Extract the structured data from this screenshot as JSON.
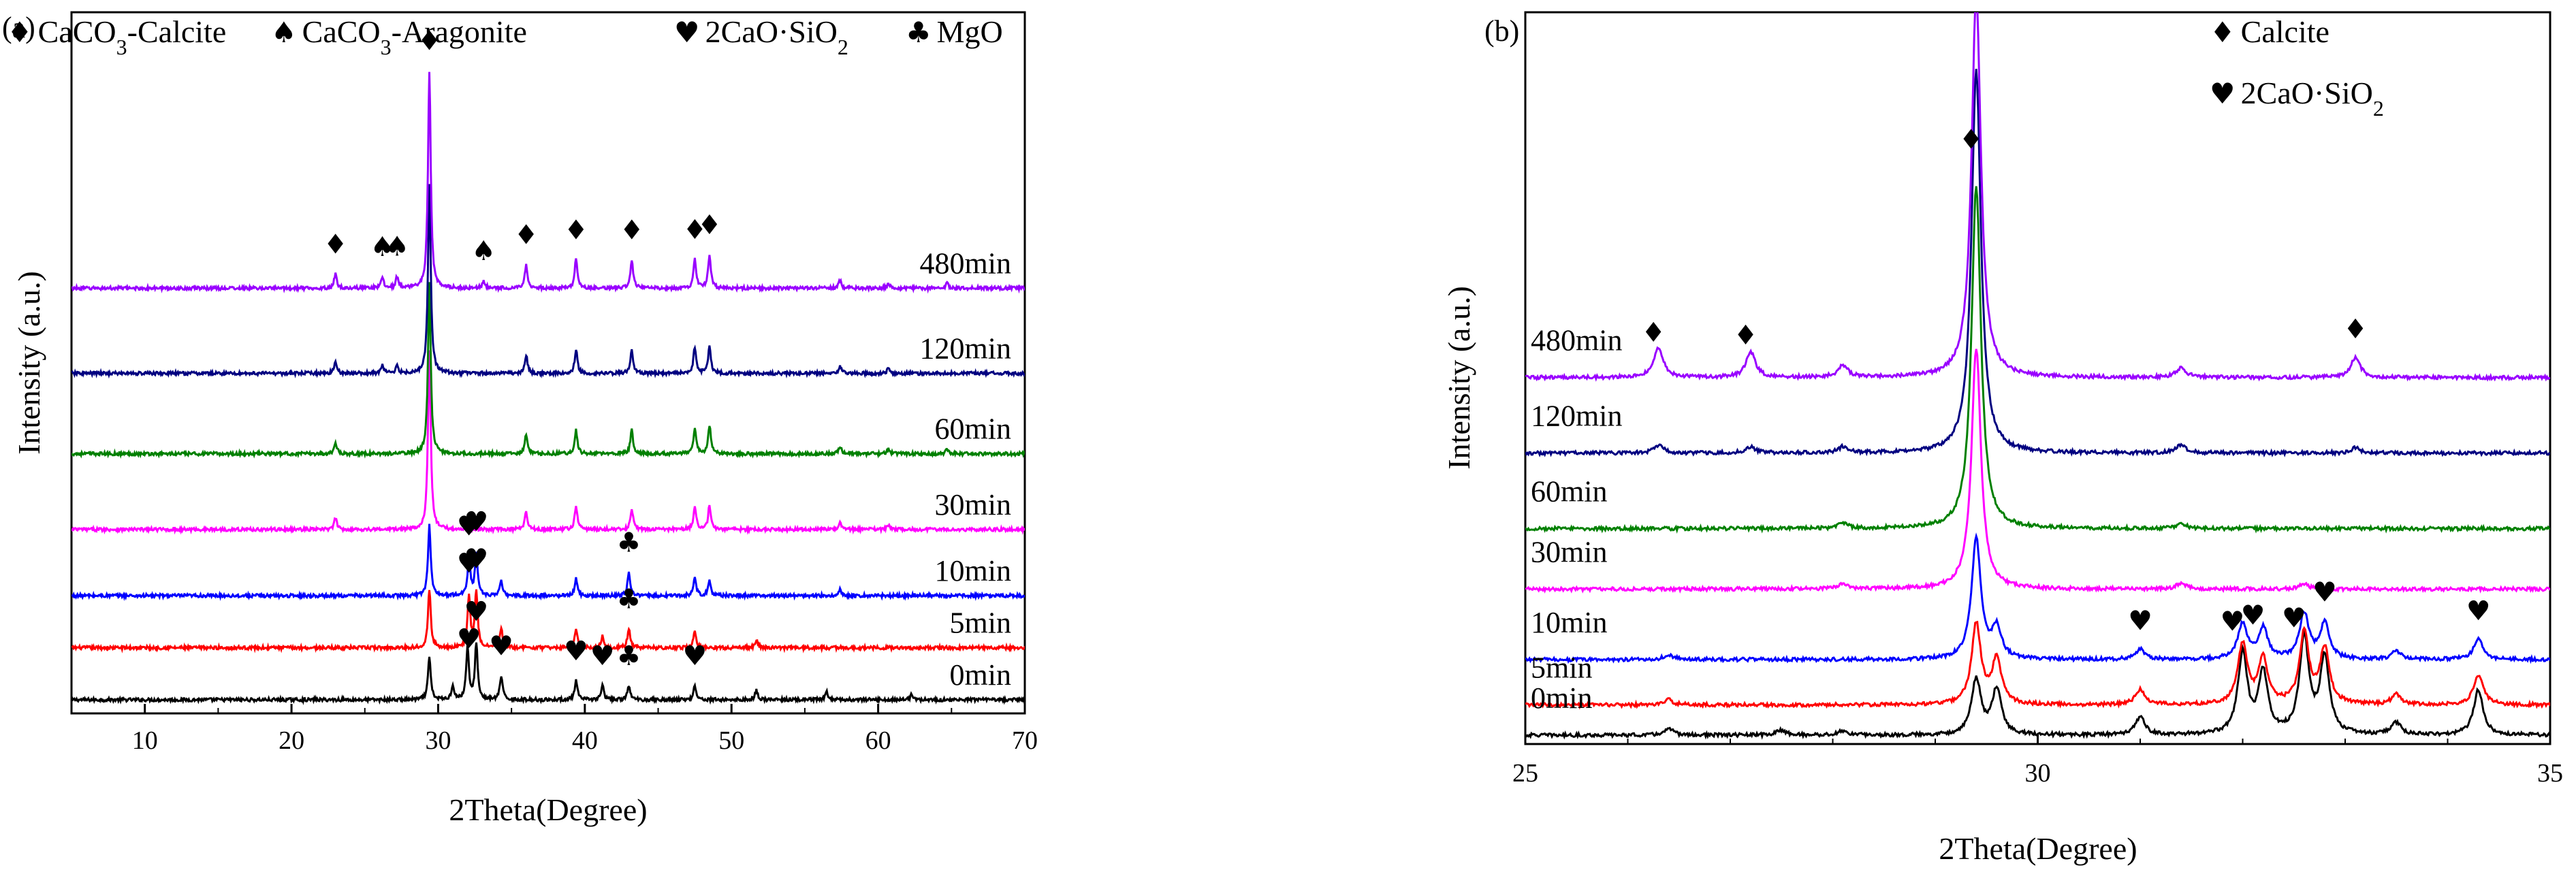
{
  "chart_data": [
    {
      "panel": "(a)",
      "type": "line",
      "xlabel": "2Theta(Degree)",
      "ylabel": "Intensity (a.u.)",
      "xlim": [
        5,
        70
      ],
      "xticks": [
        10,
        20,
        30,
        40,
        50,
        60,
        70
      ],
      "xtick_labels": [
        "10",
        "20",
        "30",
        "40",
        "50",
        "60",
        "70"
      ],
      "legend": [
        {
          "symbol": "♦",
          "parts": [
            {
              "t": "CaCO"
            },
            {
              "t": "3",
              "sub": true
            },
            {
              "t": "-Calcite"
            }
          ]
        },
        {
          "symbol": "♠",
          "parts": [
            {
              "t": "CaCO"
            },
            {
              "t": "3",
              "sub": true
            },
            {
              "t": "-Aragonite"
            }
          ]
        },
        {
          "symbol": "♥",
          "parts": [
            {
              "t": "2CaO·SiO"
            },
            {
              "t": "2",
              "sub": true
            }
          ]
        },
        {
          "symbol": "♣",
          "parts": [
            {
              "t": "MgO"
            }
          ]
        }
      ],
      "series": [
        {
          "name": "0min",
          "color": "#000000",
          "baseline": 0.0,
          "peaks": [
            [
              29.4,
              0.45
            ],
            [
              31.0,
              0.15
            ],
            [
              32.0,
              0.55
            ],
            [
              32.6,
              0.6
            ],
            [
              34.3,
              0.25
            ],
            [
              39.4,
              0.2
            ],
            [
              41.2,
              0.15
            ],
            [
              43.0,
              0.15
            ],
            [
              47.5,
              0.15
            ],
            [
              51.7,
              0.1
            ],
            [
              56.5,
              0.08
            ],
            [
              62.3,
              0.06
            ]
          ]
        },
        {
          "name": "5min",
          "color": "#ff0000",
          "baseline": 0.55,
          "peaks": [
            [
              29.4,
              0.62
            ],
            [
              32.1,
              0.55
            ],
            [
              32.6,
              0.6
            ],
            [
              34.3,
              0.2
            ],
            [
              39.4,
              0.2
            ],
            [
              41.2,
              0.12
            ],
            [
              43.0,
              0.2
            ],
            [
              47.5,
              0.18
            ],
            [
              51.7,
              0.08
            ]
          ]
        },
        {
          "name": "10min",
          "color": "#0000ff",
          "baseline": 1.1,
          "peaks": [
            [
              29.4,
              0.75
            ],
            [
              32.1,
              0.4
            ],
            [
              32.6,
              0.45
            ],
            [
              34.3,
              0.15
            ],
            [
              39.4,
              0.18
            ],
            [
              43.0,
              0.25
            ],
            [
              47.5,
              0.2
            ],
            [
              48.5,
              0.15
            ],
            [
              57.4,
              0.06
            ]
          ]
        },
        {
          "name": "30min",
          "color": "#ff00ff",
          "baseline": 1.8,
          "peaks": [
            [
              23.0,
              0.12
            ],
            [
              29.4,
              1.9
            ],
            [
              36.0,
              0.18
            ],
            [
              39.4,
              0.25
            ],
            [
              43.2,
              0.22
            ],
            [
              47.5,
              0.25
            ],
            [
              48.5,
              0.25
            ],
            [
              57.4,
              0.08
            ],
            [
              60.7,
              0.05
            ]
          ]
        },
        {
          "name": "60min",
          "color": "#008000",
          "baseline": 2.6,
          "peaks": [
            [
              23.0,
              0.12
            ],
            [
              29.4,
              1.8
            ],
            [
              36.0,
              0.2
            ],
            [
              39.4,
              0.25
            ],
            [
              43.2,
              0.25
            ],
            [
              47.5,
              0.28
            ],
            [
              48.5,
              0.3
            ],
            [
              57.4,
              0.08
            ],
            [
              60.7,
              0.05
            ],
            [
              64.7,
              0.05
            ]
          ]
        },
        {
          "name": "120min",
          "color": "#000080",
          "baseline": 3.45,
          "peaks": [
            [
              23.0,
              0.12
            ],
            [
              26.2,
              0.08
            ],
            [
              27.2,
              0.08
            ],
            [
              29.4,
              2.0
            ],
            [
              36.0,
              0.2
            ],
            [
              39.4,
              0.25
            ],
            [
              43.2,
              0.25
            ],
            [
              47.5,
              0.28
            ],
            [
              48.5,
              0.28
            ],
            [
              57.4,
              0.08
            ],
            [
              60.7,
              0.05
            ]
          ]
        },
        {
          "name": "480min",
          "color": "#9900ff",
          "baseline": 4.35,
          "peaks": [
            [
              23.0,
              0.15
            ],
            [
              26.2,
              0.12
            ],
            [
              27.2,
              0.12
            ],
            [
              29.4,
              2.3
            ],
            [
              33.1,
              0.08
            ],
            [
              36.0,
              0.25
            ],
            [
              39.4,
              0.3
            ],
            [
              43.2,
              0.3
            ],
            [
              47.5,
              0.3
            ],
            [
              48.5,
              0.35
            ],
            [
              57.4,
              0.08
            ],
            [
              60.7,
              0.05
            ],
            [
              64.7,
              0.05
            ]
          ]
        }
      ],
      "annotations": [
        {
          "symbol": "♦",
          "x": 23.0,
          "series": "480min"
        },
        {
          "symbol": "♠",
          "x": 26.2,
          "series": "480min"
        },
        {
          "symbol": "♠",
          "x": 27.2,
          "series": "480min"
        },
        {
          "symbol": "♦",
          "x": 29.4,
          "series": "480min"
        },
        {
          "symbol": "♠",
          "x": 33.1,
          "series": "480min"
        },
        {
          "symbol": "♦",
          "x": 36.0,
          "series": "480min"
        },
        {
          "symbol": "♦",
          "x": 39.4,
          "series": "480min"
        },
        {
          "symbol": "♦",
          "x": 43.2,
          "series": "480min"
        },
        {
          "symbol": "♦",
          "x": 47.5,
          "series": "480min"
        },
        {
          "symbol": "♦",
          "x": 48.5,
          "series": "480min"
        },
        {
          "symbol": "♥",
          "x": 32.1,
          "series": "10min"
        },
        {
          "symbol": "♥",
          "x": 32.6,
          "series": "10min"
        },
        {
          "symbol": "♣",
          "x": 43.0,
          "series": "10min"
        },
        {
          "symbol": "♥",
          "x": 32.1,
          "series": "5min"
        },
        {
          "symbol": "♥",
          "x": 32.6,
          "series": "5min"
        },
        {
          "symbol": "♣",
          "x": 43.0,
          "series": "5min"
        },
        {
          "symbol": "♥",
          "x": 32.1,
          "series": "0min"
        },
        {
          "symbol": "♥",
          "x": 32.6,
          "series": "0min"
        },
        {
          "symbol": "♥",
          "x": 34.3,
          "series": "0min"
        },
        {
          "symbol": "♥",
          "x": 39.4,
          "series": "0min"
        },
        {
          "symbol": "♥",
          "x": 41.2,
          "series": "0min"
        },
        {
          "symbol": "♣",
          "x": 43.0,
          "series": "0min"
        },
        {
          "symbol": "♥",
          "x": 47.5,
          "series": "0min"
        }
      ]
    },
    {
      "panel": "(b)",
      "type": "line",
      "xlabel": "2Theta(Degree)",
      "ylabel": "Intensity (a.u.)",
      "xlim": [
        25,
        35
      ],
      "xticks": [
        25,
        30,
        35
      ],
      "xtick_labels": [
        "25",
        "30",
        "35"
      ],
      "legend": [
        {
          "symbol": "♦",
          "parts": [
            {
              "t": "Calcite"
            }
          ]
        },
        {
          "symbol": "♥",
          "parts": [
            {
              "t": "2CaO·SiO"
            },
            {
              "t": "2",
              "sub": true
            }
          ]
        }
      ],
      "series": [
        {
          "name": "0min",
          "color": "#000000",
          "baseline": 0.0,
          "peaks": [
            [
              26.4,
              0.06
            ],
            [
              27.5,
              0.05
            ],
            [
              28.1,
              0.04
            ],
            [
              29.4,
              0.55
            ],
            [
              29.6,
              0.45
            ],
            [
              31.0,
              0.18
            ],
            [
              32.0,
              0.8
            ],
            [
              32.2,
              0.6
            ],
            [
              32.6,
              0.95
            ],
            [
              32.8,
              0.75
            ],
            [
              33.5,
              0.12
            ],
            [
              34.3,
              0.45
            ]
          ]
        },
        {
          "name": "5min",
          "color": "#ff0000",
          "baseline": 0.3,
          "peaks": [
            [
              26.4,
              0.05
            ],
            [
              29.4,
              0.8
            ],
            [
              29.6,
              0.45
            ],
            [
              31.0,
              0.15
            ],
            [
              32.0,
              0.6
            ],
            [
              32.2,
              0.45
            ],
            [
              32.6,
              0.7
            ],
            [
              32.8,
              0.55
            ],
            [
              33.5,
              0.1
            ],
            [
              34.3,
              0.3
            ]
          ]
        },
        {
          "name": "10min",
          "color": "#0000ff",
          "baseline": 0.75,
          "peaks": [
            [
              26.4,
              0.05
            ],
            [
              29.4,
              1.2
            ],
            [
              29.6,
              0.3
            ],
            [
              31.0,
              0.1
            ],
            [
              32.0,
              0.35
            ],
            [
              32.2,
              0.3
            ],
            [
              32.6,
              0.45
            ],
            [
              32.8,
              0.35
            ],
            [
              33.5,
              0.08
            ],
            [
              34.3,
              0.2
            ]
          ]
        },
        {
          "name": "30min",
          "color": "#ff00ff",
          "baseline": 1.45,
          "peaks": [
            [
              28.1,
              0.06
            ],
            [
              29.4,
              2.4
            ],
            [
              31.4,
              0.06
            ],
            [
              32.6,
              0.05
            ]
          ]
        },
        {
          "name": "60min",
          "color": "#008000",
          "baseline": 2.05,
          "peaks": [
            [
              28.1,
              0.05
            ],
            [
              29.4,
              3.4
            ],
            [
              31.4,
              0.05
            ]
          ]
        },
        {
          "name": "120min",
          "color": "#000080",
          "baseline": 2.8,
          "peaks": [
            [
              26.3,
              0.08
            ],
            [
              27.2,
              0.06
            ],
            [
              28.1,
              0.06
            ],
            [
              29.4,
              3.8
            ],
            [
              31.4,
              0.08
            ],
            [
              33.1,
              0.05
            ]
          ]
        },
        {
          "name": "480min",
          "color": "#9900ff",
          "baseline": 3.55,
          "peaks": [
            [
              26.3,
              0.3
            ],
            [
              27.2,
              0.25
            ],
            [
              28.1,
              0.12
            ],
            [
              29.4,
              3.8
            ],
            [
              31.4,
              0.1
            ],
            [
              33.1,
              0.2
            ]
          ]
        }
      ],
      "annotations": [
        {
          "symbol": "♦",
          "x": 26.25,
          "series": "480min"
        },
        {
          "symbol": "♦",
          "x": 27.15,
          "series": "480min"
        },
        {
          "symbol": "♦",
          "x": 29.35,
          "series": "480min"
        },
        {
          "symbol": "♦",
          "x": 33.1,
          "series": "480min"
        },
        {
          "symbol": "♥",
          "x": 31.0,
          "series": "10min"
        },
        {
          "symbol": "♥",
          "x": 31.9,
          "series": "10min"
        },
        {
          "symbol": "♥",
          "x": 32.1,
          "series": "10min"
        },
        {
          "symbol": "♥",
          "x": 32.5,
          "series": "10min"
        },
        {
          "symbol": "♥",
          "x": 32.8,
          "series": "10min"
        },
        {
          "symbol": "♥",
          "x": 34.3,
          "series": "10min"
        }
      ]
    }
  ]
}
